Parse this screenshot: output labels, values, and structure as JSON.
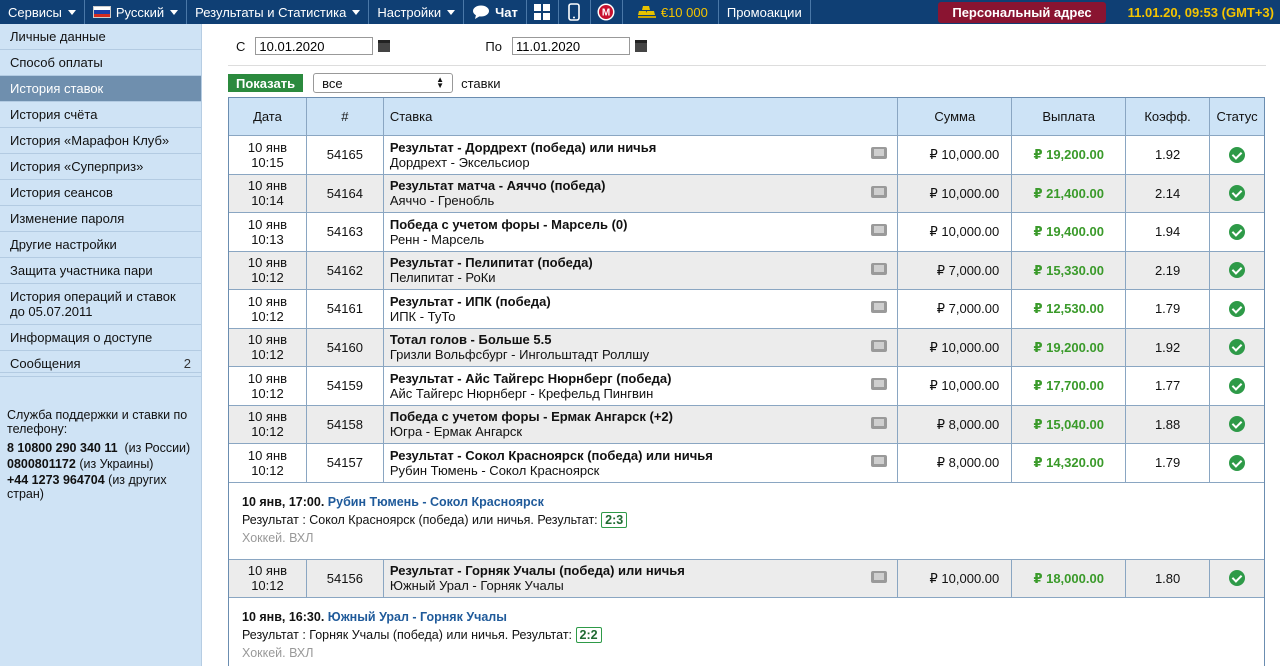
{
  "topbar": {
    "services": "Сервисы",
    "language": "Русский",
    "results": "Результаты и Статистика",
    "settings": "Настройки",
    "chat": "Чат",
    "balance": "€10 000",
    "promos": "Промоакции",
    "personal": "Персональный адрес",
    "clock": "11.01.20, 09:53 (GMT+3)"
  },
  "sidebar": {
    "items": [
      {
        "label": "Личные данные",
        "count": ""
      },
      {
        "label": "Способ оплаты",
        "count": ""
      },
      {
        "label": "История ставок",
        "count": ""
      },
      {
        "label": "История счёта",
        "count": ""
      },
      {
        "label": "История «Марафон Клуб»",
        "count": ""
      },
      {
        "label": "История «Суперприз»",
        "count": ""
      },
      {
        "label": "История сеансов",
        "count": ""
      },
      {
        "label": "Изменение пароля",
        "count": ""
      },
      {
        "label": "Другие настройки",
        "count": ""
      },
      {
        "label": "Защита участника пари",
        "count": ""
      },
      {
        "label": "История операций и ставок до 05.07.2011",
        "count": ""
      },
      {
        "label": "Информация о доступе",
        "count": ""
      },
      {
        "label": "Сообщения",
        "count": "2"
      }
    ],
    "active_index": 2,
    "support_title": "Служба поддержки и ставки по телефону:",
    "phones": [
      {
        "number": "8 10800 290 340 11",
        "note": "(из России)"
      },
      {
        "number": "0800801172",
        "note": "(из Украины)"
      },
      {
        "number": "+44 1273 964704",
        "note": "(из других стран)"
      }
    ]
  },
  "filters": {
    "from_label": "С",
    "from_value": "10.01.2020",
    "to_label": "По",
    "to_value": "11.01.2020",
    "show_button": "Показать",
    "select_value": "все",
    "after_label": "ставки"
  },
  "table": {
    "headers": [
      "Дата",
      "#",
      "Ставка",
      "Сумма",
      "Выплата",
      "Коэфф.",
      "Статус"
    ],
    "rows": [
      {
        "day": "10 янв",
        "time": "10:15",
        "id": "54165",
        "title": "Результат - Дордрехт (победа) или ничья",
        "match": "Дордрехт - Эксельсиор",
        "sum": "₽ 10,000.00",
        "payout": "₽ 19,200.00",
        "coef": "1.92"
      },
      {
        "day": "10 янв",
        "time": "10:14",
        "id": "54164",
        "title": "Результат матча - Аяччо (победа)",
        "match": "Аяччо - Гренобль",
        "sum": "₽ 10,000.00",
        "payout": "₽ 21,400.00",
        "coef": "2.14"
      },
      {
        "day": "10 янв",
        "time": "10:13",
        "id": "54163",
        "title": "Победа с учетом форы - Марсель (0)",
        "match": "Ренн - Марсель",
        "sum": "₽ 10,000.00",
        "payout": "₽ 19,400.00",
        "coef": "1.94"
      },
      {
        "day": "10 янв",
        "time": "10:12",
        "id": "54162",
        "title": "Результат - Пелипитат (победа)",
        "match": "Пелипитат - РоКи",
        "sum": "₽ 7,000.00",
        "payout": "₽ 15,330.00",
        "coef": "2.19"
      },
      {
        "day": "10 янв",
        "time": "10:12",
        "id": "54161",
        "title": "Результат - ИПК (победа)",
        "match": "ИПК - ТуТо",
        "sum": "₽ 7,000.00",
        "payout": "₽ 12,530.00",
        "coef": "1.79"
      },
      {
        "day": "10 янв",
        "time": "10:12",
        "id": "54160",
        "title": "Тотал голов - Больше 5.5",
        "match": "Гризли Вольфсбург - Ингольштадт Роллшу",
        "sum": "₽ 10,000.00",
        "payout": "₽ 19,200.00",
        "coef": "1.92"
      },
      {
        "day": "10 янв",
        "time": "10:12",
        "id": "54159",
        "title": "Результат - Айс Тайгерс Нюрнберг (победа)",
        "match": "Айс Тайгерс Нюрнберг - Крефельд Пингвин",
        "sum": "₽ 10,000.00",
        "payout": "₽ 17,700.00",
        "coef": "1.77"
      },
      {
        "day": "10 янв",
        "time": "10:12",
        "id": "54158",
        "title": "Победа с учетом форы - Ермак Ангарск (+2)",
        "match": "Югра - Ермак Ангарск",
        "sum": "₽ 8,000.00",
        "payout": "₽ 15,040.00",
        "coef": "1.88"
      },
      {
        "day": "10 янв",
        "time": "10:12",
        "id": "54157",
        "title": "Результат - Сокол Красноярск (победа) или ничья",
        "match": "Рубин Тюмень - Сокол Красноярск",
        "sum": "₽ 8,000.00",
        "payout": "₽ 14,320.00",
        "coef": "1.79"
      }
    ],
    "detail1": {
      "datetime": "10 янв, 17:00.",
      "teams": "Рубин Тюмень - Сокол Красноярск",
      "result": "Результат : Сокол Красноярск (победа) или ничья. Результат:",
      "score": "2:3",
      "league": "Хоккей. ВХЛ"
    },
    "row_last": {
      "day": "10 янв",
      "time": "10:12",
      "id": "54156",
      "title": "Результат - Горняк Учалы (победа) или ничья",
      "match": "Южный Урал - Горняк Учалы",
      "sum": "₽ 10,000.00",
      "payout": "₽ 18,000.00",
      "coef": "1.80"
    },
    "detail2": {
      "datetime": "10 янв, 16:30.",
      "teams": "Южный Урал - Горняк Учалы",
      "result": "Результат : Горняк Учалы (победа) или ничья. Результат:",
      "score": "2:2",
      "league": "Хоккей. ВХЛ"
    }
  },
  "colors": {
    "topbar": "#0f3f74",
    "sidebar": "#cfe3f5",
    "payout": "#3a9a2a",
    "personal": "#8a1431",
    "clock": "#f5c400"
  }
}
